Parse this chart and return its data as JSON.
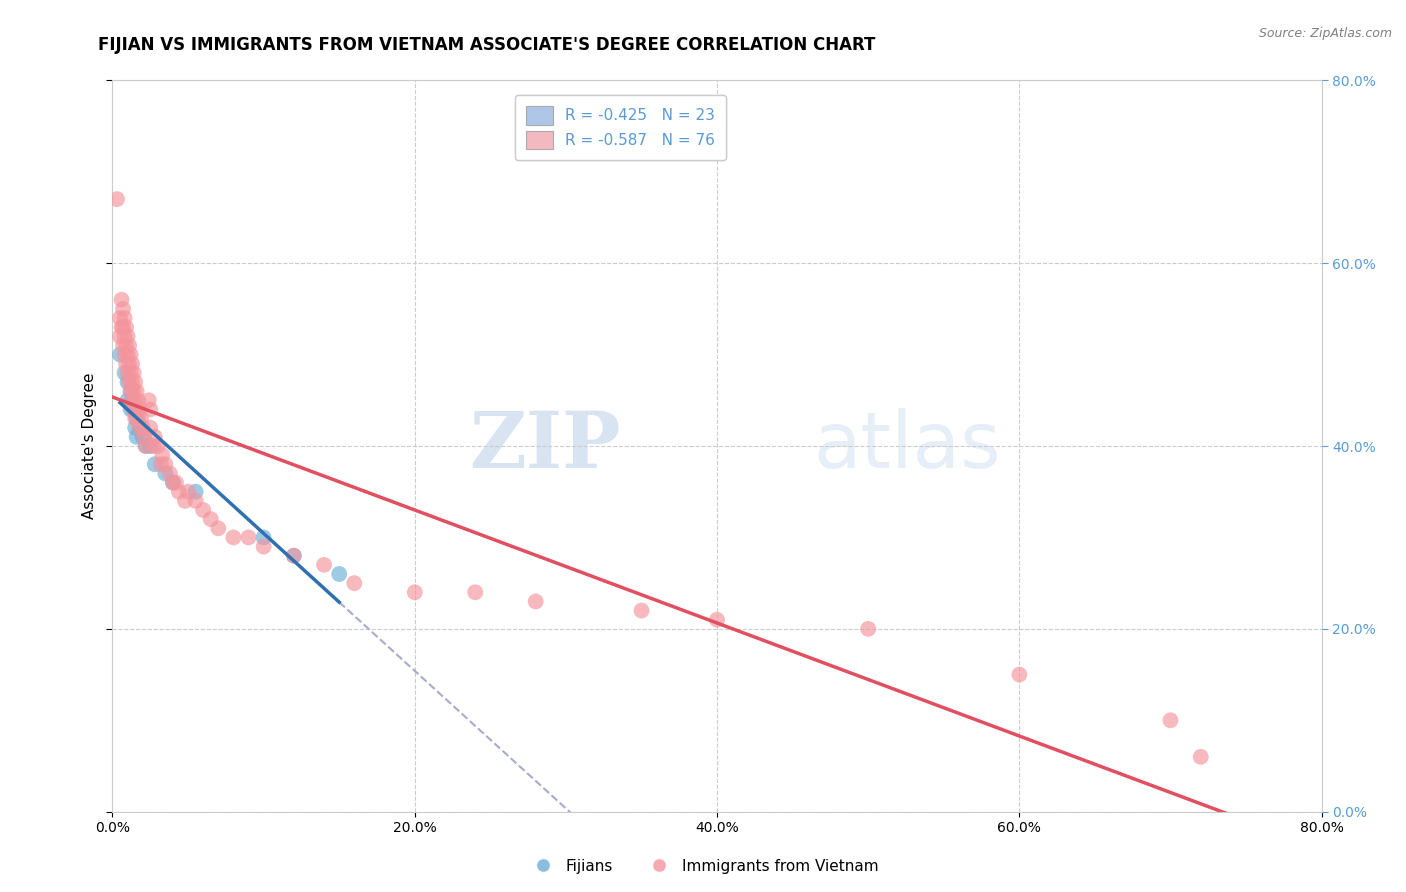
{
  "title": "FIJIAN VS IMMIGRANTS FROM VIETNAM ASSOCIATE'S DEGREE CORRELATION CHART",
  "source": "Source: ZipAtlas.com",
  "ylabel": "Associate's Degree",
  "watermark_zip": "ZIP",
  "watermark_atlas": "atlas",
  "legend_entries": [
    {
      "label": "R = -0.425   N = 23",
      "color": "#aec6e8"
    },
    {
      "label": "R = -0.587   N = 76",
      "color": "#f4b8c1"
    }
  ],
  "legend_labels": [
    "Fijians",
    "Immigrants from Vietnam"
  ],
  "fijian_color": "#6aaed6",
  "vietnam_color": "#f4949c",
  "trendline_fijian_color": "#3070b0",
  "trendline_vietnam_color": "#e05060",
  "trendline_dashed_color": "#aaaacc",
  "xmin": 0.0,
  "xmax": 0.8,
  "ymin": 0.0,
  "ymax": 0.8,
  "xticks": [
    0.0,
    0.2,
    0.4,
    0.6,
    0.8
  ],
  "yticks": [
    0.0,
    0.2,
    0.4,
    0.6,
    0.8
  ],
  "tick_labels": [
    "0.0%",
    "20.0%",
    "40.0%",
    "60.0%",
    "80.0%"
  ],
  "fijian_scatter": [
    [
      0.005,
      0.5
    ],
    [
      0.008,
      0.48
    ],
    [
      0.01,
      0.47
    ],
    [
      0.01,
      0.45
    ],
    [
      0.012,
      0.46
    ],
    [
      0.012,
      0.44
    ],
    [
      0.013,
      0.45
    ],
    [
      0.014,
      0.44
    ],
    [
      0.015,
      0.44
    ],
    [
      0.015,
      0.42
    ],
    [
      0.016,
      0.43
    ],
    [
      0.016,
      0.41
    ],
    [
      0.018,
      0.42
    ],
    [
      0.02,
      0.41
    ],
    [
      0.022,
      0.4
    ],
    [
      0.025,
      0.4
    ],
    [
      0.028,
      0.38
    ],
    [
      0.035,
      0.37
    ],
    [
      0.04,
      0.36
    ],
    [
      0.055,
      0.35
    ],
    [
      0.1,
      0.3
    ],
    [
      0.12,
      0.28
    ],
    [
      0.15,
      0.26
    ]
  ],
  "vietnam_scatter": [
    [
      0.003,
      0.67
    ],
    [
      0.005,
      0.54
    ],
    [
      0.005,
      0.52
    ],
    [
      0.006,
      0.56
    ],
    [
      0.006,
      0.53
    ],
    [
      0.007,
      0.55
    ],
    [
      0.007,
      0.53
    ],
    [
      0.007,
      0.51
    ],
    [
      0.008,
      0.54
    ],
    [
      0.008,
      0.52
    ],
    [
      0.008,
      0.5
    ],
    [
      0.009,
      0.53
    ],
    [
      0.009,
      0.51
    ],
    [
      0.009,
      0.49
    ],
    [
      0.01,
      0.52
    ],
    [
      0.01,
      0.5
    ],
    [
      0.01,
      0.48
    ],
    [
      0.011,
      0.51
    ],
    [
      0.011,
      0.49
    ],
    [
      0.011,
      0.47
    ],
    [
      0.012,
      0.5
    ],
    [
      0.012,
      0.48
    ],
    [
      0.012,
      0.46
    ],
    [
      0.013,
      0.49
    ],
    [
      0.013,
      0.47
    ],
    [
      0.013,
      0.45
    ],
    [
      0.014,
      0.48
    ],
    [
      0.014,
      0.46
    ],
    [
      0.014,
      0.44
    ],
    [
      0.015,
      0.47
    ],
    [
      0.015,
      0.45
    ],
    [
      0.015,
      0.43
    ],
    [
      0.016,
      0.46
    ],
    [
      0.016,
      0.44
    ],
    [
      0.017,
      0.45
    ],
    [
      0.017,
      0.43
    ],
    [
      0.018,
      0.44
    ],
    [
      0.018,
      0.42
    ],
    [
      0.019,
      0.43
    ],
    [
      0.02,
      0.42
    ],
    [
      0.021,
      0.41
    ],
    [
      0.022,
      0.4
    ],
    [
      0.024,
      0.45
    ],
    [
      0.025,
      0.44
    ],
    [
      0.025,
      0.42
    ],
    [
      0.027,
      0.4
    ],
    [
      0.028,
      0.41
    ],
    [
      0.03,
      0.4
    ],
    [
      0.032,
      0.38
    ],
    [
      0.033,
      0.39
    ],
    [
      0.035,
      0.38
    ],
    [
      0.038,
      0.37
    ],
    [
      0.04,
      0.36
    ],
    [
      0.042,
      0.36
    ],
    [
      0.044,
      0.35
    ],
    [
      0.048,
      0.34
    ],
    [
      0.05,
      0.35
    ],
    [
      0.055,
      0.34
    ],
    [
      0.06,
      0.33
    ],
    [
      0.065,
      0.32
    ],
    [
      0.07,
      0.31
    ],
    [
      0.08,
      0.3
    ],
    [
      0.09,
      0.3
    ],
    [
      0.1,
      0.29
    ],
    [
      0.12,
      0.28
    ],
    [
      0.14,
      0.27
    ],
    [
      0.16,
      0.25
    ],
    [
      0.2,
      0.24
    ],
    [
      0.24,
      0.24
    ],
    [
      0.28,
      0.23
    ],
    [
      0.35,
      0.22
    ],
    [
      0.4,
      0.21
    ],
    [
      0.5,
      0.2
    ],
    [
      0.6,
      0.15
    ],
    [
      0.7,
      0.1
    ],
    [
      0.72,
      0.06
    ]
  ],
  "background_color": "#ffffff",
  "grid_color": "#cccccc",
  "right_tick_color": "#5b9bd5",
  "title_fontsize": 12,
  "axis_label_fontsize": 11,
  "tick_fontsize": 10
}
